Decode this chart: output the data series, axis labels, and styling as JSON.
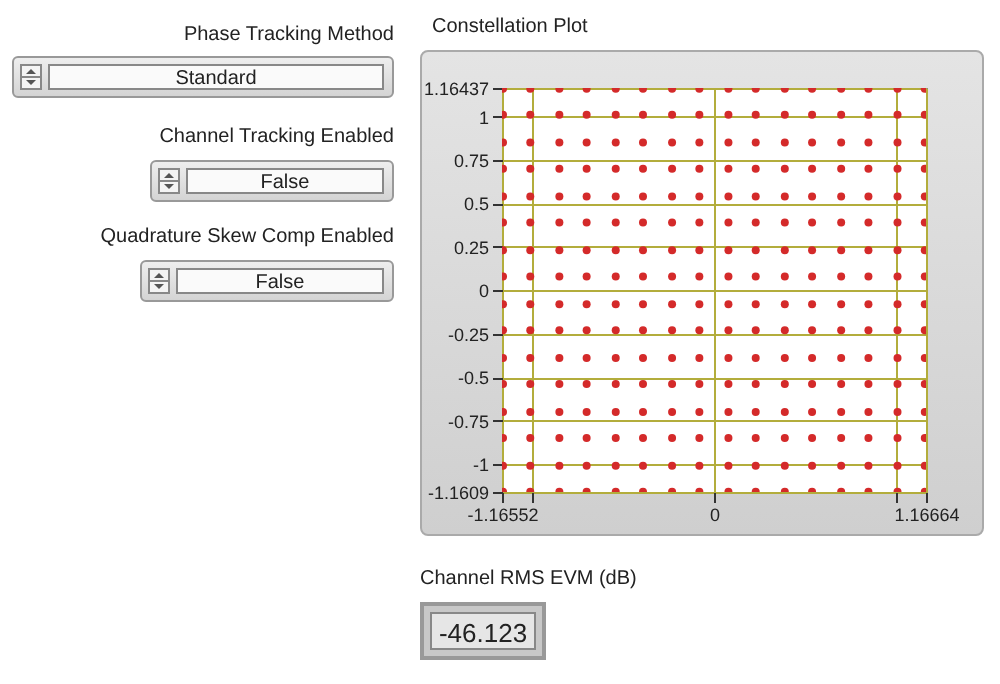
{
  "chart_data": [
    {
      "type": "other",
      "annotations": [
        "Phase Tracking Method",
        "Standard",
        "Channel Tracking Enabled",
        "False",
        "Quadrature Skew Comp Enabled",
        "False"
      ]
    },
    {
      "type": "scatter",
      "title": "Constellation Plot",
      "color": "#d42a2a",
      "marker": "circle",
      "grid": true,
      "xlim": [
        -1.16552,
        1.16664
      ],
      "ylim": [
        -1.1609,
        1.16437
      ],
      "xticks": [
        -1.16552,
        {
          "value": -1,
          "label": null
        },
        0,
        {
          "value": 1,
          "label": null
        },
        1.16664
      ],
      "yticks": [
        -1.1609,
        -1,
        -0.75,
        -0.5,
        -0.25,
        0,
        0.25,
        0.5,
        0.75,
        1,
        1.16437
      ],
      "x": [
        -1.16,
        -1.16,
        -1.16,
        -1.16,
        -1.16,
        -1.16,
        -1.16,
        -1.16,
        -1.16,
        -1.16,
        -1.16,
        -1.16,
        -1.16,
        -1.16,
        -1.16,
        -1.16,
        -1.01,
        -1.01,
        -1.01,
        -1.01,
        -1.01,
        -1.01,
        -1.01,
        -1.01,
        -1.01,
        -1.01,
        -1.01,
        -1.01,
        -1.01,
        -1.01,
        -1.01,
        -1.01,
        -0.85,
        -0.85,
        -0.85,
        -0.85,
        -0.85,
        -0.85,
        -0.85,
        -0.85,
        -0.85,
        -0.85,
        -0.85,
        -0.85,
        -0.85,
        -0.85,
        -0.85,
        -0.85,
        -0.7,
        -0.7,
        -0.7,
        -0.7,
        -0.7,
        -0.7,
        -0.7,
        -0.7,
        -0.7,
        -0.7,
        -0.7,
        -0.7,
        -0.7,
        -0.7,
        -0.7,
        -0.7,
        -0.54,
        -0.54,
        -0.54,
        -0.54,
        -0.54,
        -0.54,
        -0.54,
        -0.54,
        -0.54,
        -0.54,
        -0.54,
        -0.54,
        -0.54,
        -0.54,
        -0.54,
        -0.54,
        -0.39,
        -0.39,
        -0.39,
        -0.39,
        -0.39,
        -0.39,
        -0.39,
        -0.39,
        -0.39,
        -0.39,
        -0.39,
        -0.39,
        -0.39,
        -0.39,
        -0.39,
        -0.39,
        -0.23,
        -0.23,
        -0.23,
        -0.23,
        -0.23,
        -0.23,
        -0.23,
        -0.23,
        -0.23,
        -0.23,
        -0.23,
        -0.23,
        -0.23,
        -0.23,
        -0.23,
        -0.23,
        -0.08,
        -0.08,
        -0.08,
        -0.08,
        -0.08,
        -0.08,
        -0.08,
        -0.08,
        -0.08,
        -0.08,
        -0.08,
        -0.08,
        -0.08,
        -0.08,
        -0.08,
        -0.08,
        0.08,
        0.08,
        0.08,
        0.08,
        0.08,
        0.08,
        0.08,
        0.08,
        0.08,
        0.08,
        0.08,
        0.08,
        0.08,
        0.08,
        0.08,
        0.08,
        0.23,
        0.23,
        0.23,
        0.23,
        0.23,
        0.23,
        0.23,
        0.23,
        0.23,
        0.23,
        0.23,
        0.23,
        0.23,
        0.23,
        0.23,
        0.23,
        0.39,
        0.39,
        0.39,
        0.39,
        0.39,
        0.39,
        0.39,
        0.39,
        0.39,
        0.39,
        0.39,
        0.39,
        0.39,
        0.39,
        0.39,
        0.39,
        0.54,
        0.54,
        0.54,
        0.54,
        0.54,
        0.54,
        0.54,
        0.54,
        0.54,
        0.54,
        0.54,
        0.54,
        0.54,
        0.54,
        0.54,
        0.54,
        0.7,
        0.7,
        0.7,
        0.7,
        0.7,
        0.7,
        0.7,
        0.7,
        0.7,
        0.7,
        0.7,
        0.7,
        0.7,
        0.7,
        0.7,
        0.7,
        0.85,
        0.85,
        0.85,
        0.85,
        0.85,
        0.85,
        0.85,
        0.85,
        0.85,
        0.85,
        0.85,
        0.85,
        0.85,
        0.85,
        0.85,
        0.85,
        1.01,
        1.01,
        1.01,
        1.01,
        1.01,
        1.01,
        1.01,
        1.01,
        1.01,
        1.01,
        1.01,
        1.01,
        1.01,
        1.01,
        1.01,
        1.01,
        1.16,
        1.16,
        1.16,
        1.16,
        1.16,
        1.16,
        1.16,
        1.16,
        1.16,
        1.16,
        1.16,
        1.16,
        1.16,
        1.16,
        1.16,
        1.16
      ],
      "values": [
        -1.16,
        -1.01,
        -0.85,
        -0.7,
        -0.54,
        -0.39,
        -0.23,
        -0.08,
        0.08,
        0.23,
        0.39,
        0.54,
        0.7,
        0.85,
        1.01,
        1.16,
        -1.16,
        -1.01,
        -0.85,
        -0.7,
        -0.54,
        -0.39,
        -0.23,
        -0.08,
        0.08,
        0.23,
        0.39,
        0.54,
        0.7,
        0.85,
        1.01,
        1.16,
        -1.16,
        -1.01,
        -0.85,
        -0.7,
        -0.54,
        -0.39,
        -0.23,
        -0.08,
        0.08,
        0.23,
        0.39,
        0.54,
        0.7,
        0.85,
        1.01,
        1.16,
        -1.16,
        -1.01,
        -0.85,
        -0.7,
        -0.54,
        -0.39,
        -0.23,
        -0.08,
        0.08,
        0.23,
        0.39,
        0.54,
        0.7,
        0.85,
        1.01,
        1.16,
        -1.16,
        -1.01,
        -0.85,
        -0.7,
        -0.54,
        -0.39,
        -0.23,
        -0.08,
        0.08,
        0.23,
        0.39,
        0.54,
        0.7,
        0.85,
        1.01,
        1.16,
        -1.16,
        -1.01,
        -0.85,
        -0.7,
        -0.54,
        -0.39,
        -0.23,
        -0.08,
        0.08,
        0.23,
        0.39,
        0.54,
        0.7,
        0.85,
        1.01,
        1.16,
        -1.16,
        -1.01,
        -0.85,
        -0.7,
        -0.54,
        -0.39,
        -0.23,
        -0.08,
        0.08,
        0.23,
        0.39,
        0.54,
        0.7,
        0.85,
        1.01,
        1.16,
        -1.16,
        -1.01,
        -0.85,
        -0.7,
        -0.54,
        -0.39,
        -0.23,
        -0.08,
        0.08,
        0.23,
        0.39,
        0.54,
        0.7,
        0.85,
        1.01,
        1.16,
        -1.16,
        -1.01,
        -0.85,
        -0.7,
        -0.54,
        -0.39,
        -0.23,
        -0.08,
        0.08,
        0.23,
        0.39,
        0.54,
        0.7,
        0.85,
        1.01,
        1.16,
        -1.16,
        -1.01,
        -0.85,
        -0.7,
        -0.54,
        -0.39,
        -0.23,
        -0.08,
        0.08,
        0.23,
        0.39,
        0.54,
        0.7,
        0.85,
        1.01,
        1.16,
        -1.16,
        -1.01,
        -0.85,
        -0.7,
        -0.54,
        -0.39,
        -0.23,
        -0.08,
        0.08,
        0.23,
        0.39,
        0.54,
        0.7,
        0.85,
        1.01,
        1.16,
        -1.16,
        -1.01,
        -0.85,
        -0.7,
        -0.54,
        -0.39,
        -0.23,
        -0.08,
        0.08,
        0.23,
        0.39,
        0.54,
        0.7,
        0.85,
        1.01,
        1.16,
        -1.16,
        -1.01,
        -0.85,
        -0.7,
        -0.54,
        -0.39,
        -0.23,
        -0.08,
        0.08,
        0.23,
        0.39,
        0.54,
        0.7,
        0.85,
        1.01,
        1.16,
        -1.16,
        -1.01,
        -0.85,
        -0.7,
        -0.54,
        -0.39,
        -0.23,
        -0.08,
        0.08,
        0.23,
        0.39,
        0.54,
        0.7,
        0.85,
        1.01,
        1.16,
        -1.16,
        -1.01,
        -0.85,
        -0.7,
        -0.54,
        -0.39,
        -0.23,
        -0.08,
        0.08,
        0.23,
        0.39,
        0.54,
        0.7,
        0.85,
        1.01,
        1.16,
        -1.16,
        -1.01,
        -0.85,
        -0.7,
        -0.54,
        -0.39,
        -0.23,
        -0.08,
        0.08,
        0.23,
        0.39,
        0.54,
        0.7,
        0.85,
        1.01,
        1.16
      ]
    },
    {
      "type": "other",
      "title": "Channel RMS EVM (dB)",
      "annotations": [
        "-46.123"
      ]
    }
  ]
}
